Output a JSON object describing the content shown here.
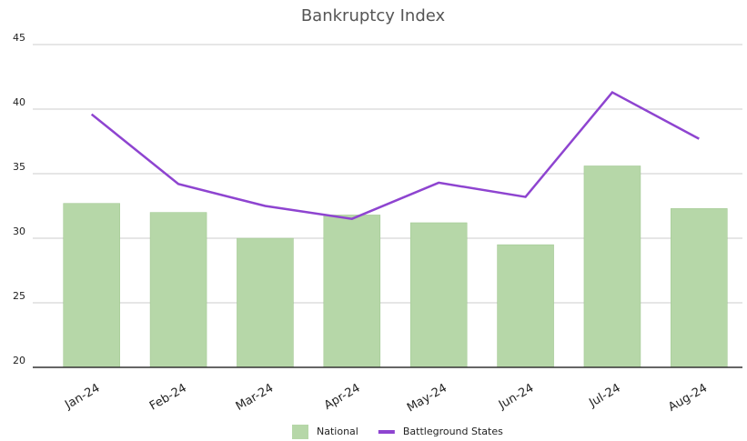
{
  "chart_data": {
    "type": "combo",
    "title": "Bankruptcy Index",
    "categories": [
      "Jan-24",
      "Feb-24",
      "Mar-24",
      "Apr-24",
      "May-24",
      "Jun-24",
      "Jul-24",
      "Aug-24"
    ],
    "series": [
      {
        "name": "National",
        "type": "bar",
        "color": "#b6d7a8",
        "values": [
          32.7,
          32.0,
          30.0,
          31.8,
          31.2,
          29.5,
          35.6,
          32.3
        ]
      },
      {
        "name": "Battleground States",
        "type": "line",
        "color": "#8e44d0",
        "values": [
          39.6,
          34.2,
          32.5,
          31.5,
          34.3,
          33.2,
          41.3,
          37.7
        ]
      }
    ],
    "ylim": [
      20,
      45
    ],
    "yticks": [
      20,
      25,
      30,
      35,
      40,
      45
    ],
    "grid": true,
    "legend": "bottom"
  }
}
